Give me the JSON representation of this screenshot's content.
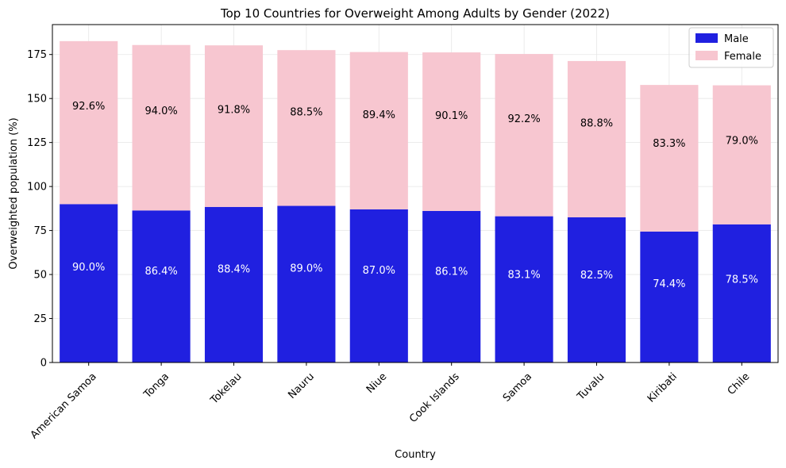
{
  "chart_data": {
    "type": "bar",
    "stacked": true,
    "title": "Top 10 Countries for Overweight Among Adults by Gender (2022)",
    "xlabel": "Country",
    "ylabel": "Overweighted population (%)",
    "ylim": [
      0,
      192
    ],
    "yticks": [
      0,
      25,
      50,
      75,
      100,
      125,
      150,
      175
    ],
    "grid": true,
    "legend_position": "top-right",
    "categories": [
      "American Samoa",
      "Tonga",
      "Tokelau",
      "Nauru",
      "Niue",
      "Cook Islands",
      "Samoa",
      "Tuvalu",
      "Kiribati",
      "Chile"
    ],
    "series": [
      {
        "name": "Male",
        "color": "#2020e0",
        "values": [
          90.0,
          86.4,
          88.4,
          89.0,
          87.0,
          86.1,
          83.1,
          82.5,
          74.4,
          78.5
        ],
        "labels": [
          "90.0%",
          "86.4%",
          "88.4%",
          "89.0%",
          "87.0%",
          "86.1%",
          "83.1%",
          "82.5%",
          "74.4%",
          "78.5%"
        ]
      },
      {
        "name": "Female",
        "color": "#f7c6d0",
        "values": [
          92.6,
          94.0,
          91.8,
          88.5,
          89.4,
          90.1,
          92.2,
          88.8,
          83.3,
          79.0
        ],
        "labels": [
          "92.6%",
          "94.0%",
          "91.8%",
          "88.5%",
          "89.4%",
          "90.1%",
          "92.2%",
          "88.8%",
          "83.3%",
          "79.0%"
        ]
      }
    ]
  }
}
